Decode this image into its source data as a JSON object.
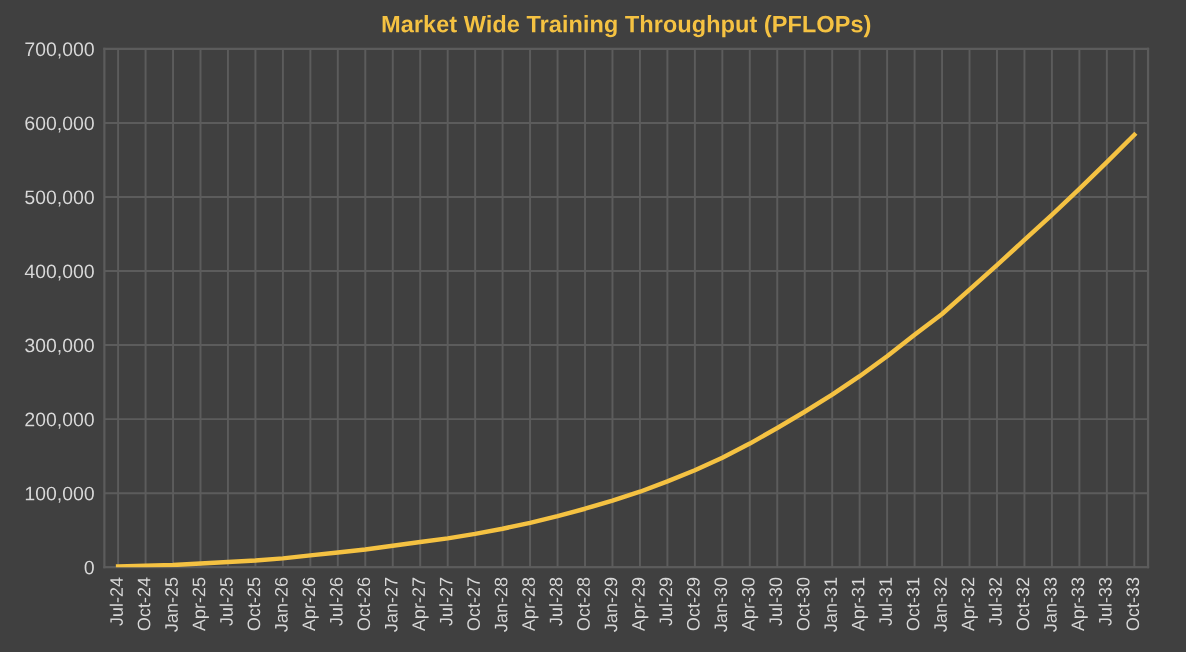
{
  "chart_data": {
    "type": "line",
    "title": "Market Wide Training Throughput (PFLOPs)",
    "categories": [
      "Jul-24",
      "Oct-24",
      "Jan-25",
      "Apr-25",
      "Jul-25",
      "Oct-25",
      "Jan-26",
      "Apr-26",
      "Jul-26",
      "Oct-26",
      "Jan-27",
      "Apr-27",
      "Jul-27",
      "Oct-27",
      "Jan-28",
      "Apr-28",
      "Jul-28",
      "Oct-28",
      "Jan-29",
      "Apr-29",
      "Jul-29",
      "Oct-29",
      "Jan-30",
      "Apr-30",
      "Jul-30",
      "Oct-30",
      "Jan-31",
      "Apr-31",
      "Jul-31",
      "Oct-31",
      "Jan-32",
      "Apr-32",
      "Jul-32",
      "Oct-32",
      "Jan-33",
      "Apr-33",
      "Jul-33",
      "Oct-33"
    ],
    "series": [
      {
        "color": "#f5c242",
        "values": [
          1000,
          2000,
          3000,
          5000,
          7000,
          9000,
          12000,
          16000,
          20000,
          24000,
          29000,
          34000,
          39000,
          45000,
          52000,
          60000,
          69000,
          79000,
          90000,
          102000,
          116000,
          131000,
          148000,
          167000,
          188000,
          210000,
          233000,
          258000,
          285000,
          314000,
          342000,
          375000,
          408000,
          442000,
          476000,
          511000,
          547000,
          584000
        ]
      }
    ],
    "ylim": [
      0,
      700000
    ],
    "yticks": [
      {
        "value": 0,
        "label": "0"
      },
      {
        "value": 100000,
        "label": "100,000"
      },
      {
        "value": 200000,
        "label": "200,000"
      },
      {
        "value": 300000,
        "label": "300,000"
      },
      {
        "value": 400000,
        "label": "400,000"
      },
      {
        "value": 500000,
        "label": "500,000"
      },
      {
        "value": 600000,
        "label": "600,000"
      },
      {
        "value": 700000,
        "label": "700,000"
      }
    ],
    "grid": true,
    "legend": false,
    "marker": "none",
    "line_style": "solid"
  }
}
